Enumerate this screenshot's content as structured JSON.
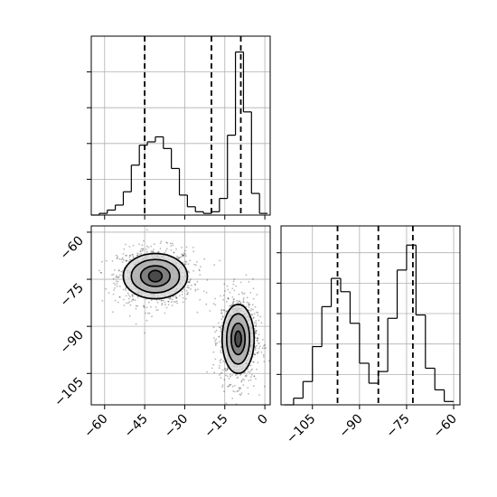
{
  "chart_data": [
    {
      "type": "histogram",
      "panel": "top-left",
      "variable": "x",
      "xlim": [
        -65,
        2
      ],
      "bins": [
        [
          -65,
          -62,
          0.0
        ],
        [
          -62,
          -59,
          0.01
        ],
        [
          -59,
          -56,
          0.03
        ],
        [
          -56,
          -53,
          0.06
        ],
        [
          -53,
          -50,
          0.14
        ],
        [
          -50,
          -47,
          0.3
        ],
        [
          -47,
          -44,
          0.42
        ],
        [
          -44,
          -41,
          0.44
        ],
        [
          -41,
          -38,
          0.47
        ],
        [
          -38,
          -35,
          0.4
        ],
        [
          -35,
          -32,
          0.28
        ],
        [
          -32,
          -29,
          0.12
        ],
        [
          -29,
          -26,
          0.05
        ],
        [
          -26,
          -23,
          0.02
        ],
        [
          -23,
          -20,
          0.01
        ],
        [
          -20,
          -17,
          0.02
        ],
        [
          -17,
          -14,
          0.1
        ],
        [
          -14,
          -11,
          0.48
        ],
        [
          -11,
          -8,
          0.98
        ],
        [
          -8,
          -5,
          0.62
        ],
        [
          -5,
          -2,
          0.13
        ],
        [
          -2,
          1,
          0.01
        ]
      ],
      "quantile_lines": [
        -45,
        -20,
        -9
      ]
    },
    {
      "type": "scatter",
      "panel": "bottom-left",
      "xlabel": "",
      "ylabel": "",
      "xlim": [
        -65,
        2
      ],
      "ylim": [
        -115,
        -58
      ],
      "x_ticks": [
        "−60",
        "−45",
        "−30",
        "−15",
        "0"
      ],
      "y_ticks": [
        "−60",
        "−75",
        "−90",
        "−105"
      ],
      "clusters": [
        {
          "center": [
            -41,
            -74
          ],
          "spread": [
            7,
            4.5
          ]
        },
        {
          "center": [
            -10,
            -94
          ],
          "spread": [
            3.5,
            7
          ]
        }
      ],
      "contours": [
        {
          "center": [
            -41,
            -74
          ],
          "radii": [
            [
              2.5,
              1.8
            ],
            [
              5.5,
              3.3
            ],
            [
              9,
              5.3
            ],
            [
              12,
              7.2
            ]
          ]
        },
        {
          "center": [
            -10,
            -94
          ],
          "radii": [
            [
              1.2,
              2.5
            ],
            [
              2.6,
              5
            ],
            [
              4.3,
              8
            ],
            [
              6,
              11
            ]
          ]
        }
      ]
    },
    {
      "type": "histogram",
      "panel": "bottom-right",
      "variable": "y",
      "xlim": [
        -115,
        -58
      ],
      "x_ticks": [
        "−105",
        "−90",
        "−75",
        "−60"
      ],
      "bins": [
        [
          -114,
          -111,
          0.0
        ],
        [
          -111,
          -108,
          0.04
        ],
        [
          -108,
          -105,
          0.14
        ],
        [
          -105,
          -102,
          0.35
        ],
        [
          -102,
          -99,
          0.59
        ],
        [
          -99,
          -96,
          0.76
        ],
        [
          -96,
          -93,
          0.68
        ],
        [
          -93,
          -90,
          0.49
        ],
        [
          -90,
          -87,
          0.25
        ],
        [
          -87,
          -84,
          0.13
        ],
        [
          -84,
          -81,
          0.2
        ],
        [
          -81,
          -78,
          0.52
        ],
        [
          -78,
          -75,
          0.81
        ],
        [
          -75,
          -72,
          0.96
        ],
        [
          -72,
          -69,
          0.54
        ],
        [
          -69,
          -66,
          0.22
        ],
        [
          -66,
          -63,
          0.09
        ],
        [
          -63,
          -60,
          0.02
        ]
      ],
      "quantile_lines": [
        -97,
        -84,
        -73
      ]
    }
  ]
}
